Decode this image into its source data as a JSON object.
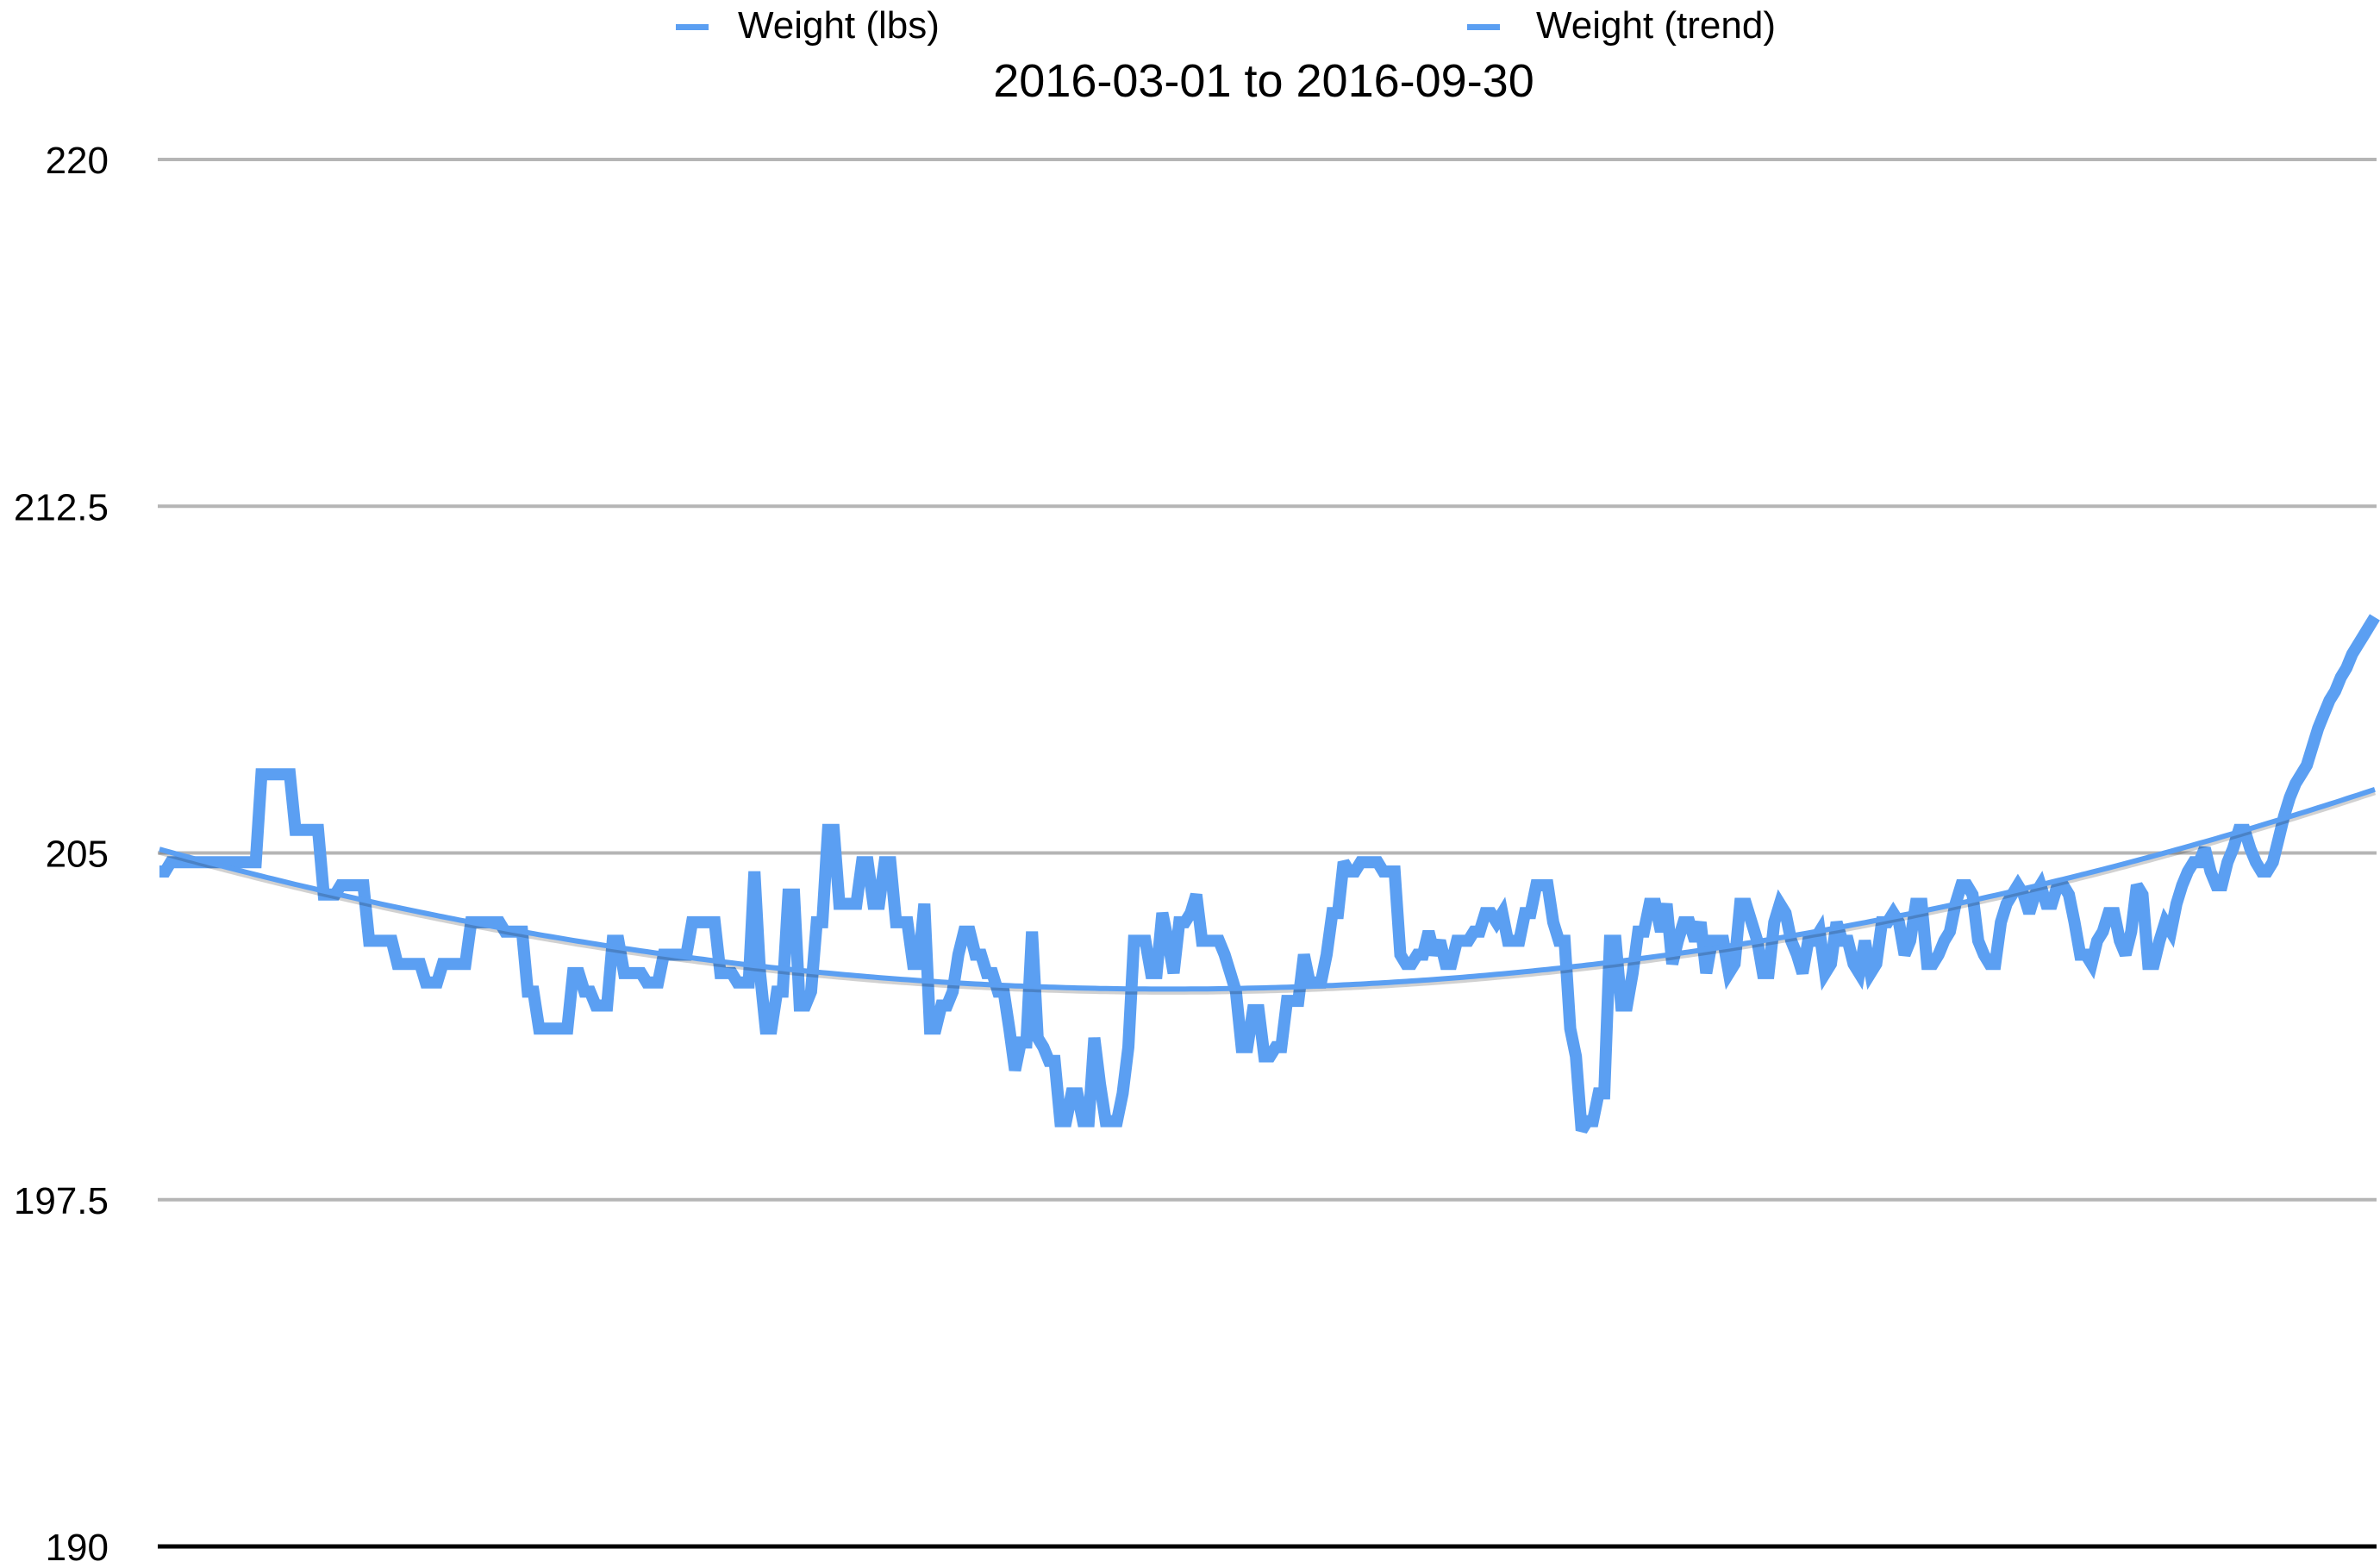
{
  "chart_data": {
    "type": "line",
    "title": "2016-03-01 to 2016-09-30",
    "xlabel": "",
    "ylabel": "",
    "ylim": [
      190,
      220
    ],
    "yticks": [
      {
        "value": 190,
        "label": "190"
      },
      {
        "value": 197.5,
        "label": "197.5"
      },
      {
        "value": 205,
        "label": "205"
      },
      {
        "value": 212.5,
        "label": "212.5"
      },
      {
        "value": 220,
        "label": "220"
      }
    ],
    "grid": true,
    "legend_position": "top",
    "series": [
      {
        "name": "Weight (lbs)",
        "color": "#5b9ff2",
        "x_start": "2016-03-01",
        "values": [
          204.6,
          204.6,
          204.8,
          204.8,
          204.8,
          204.8,
          204.8,
          204.8,
          204.8,
          204.8,
          204.8,
          204.8,
          204.8,
          204.8,
          204.8,
          204.8,
          204.8,
          204.8,
          206.7,
          206.7,
          206.7,
          206.7,
          206.7,
          206.7,
          205.5,
          205.5,
          205.5,
          205.5,
          205.5,
          204.1,
          204.1,
          204.1,
          204.3,
          204.3,
          204.3,
          204.3,
          204.3,
          203.1,
          203.1,
          203.1,
          203.1,
          203.1,
          202.6,
          202.6,
          202.6,
          202.6,
          202.6,
          202.2,
          202.2,
          202.2,
          202.6,
          202.6,
          202.6,
          202.6,
          202.6,
          203.5,
          203.5,
          203.5,
          203.5,
          203.5,
          203.5,
          203.3,
          203.3,
          203.3,
          203.3,
          202.0,
          202.0,
          201.2,
          201.2,
          201.2,
          201.2,
          201.2,
          201.2,
          202.4,
          202.4,
          202.0,
          202.0,
          201.7,
          201.7,
          201.7,
          203.1,
          203.1,
          202.4,
          202.4,
          202.4,
          202.4,
          202.2,
          202.2,
          202.2,
          202.8,
          202.8,
          202.8,
          202.8,
          202.8,
          203.5,
          203.5,
          203.5,
          203.5,
          203.5,
          202.4,
          202.4,
          202.4,
          202.2,
          202.2,
          202.2,
          204.6,
          202.4,
          201.2,
          201.2,
          202.0,
          202.0,
          204.1,
          204.1,
          201.7,
          201.7,
          202.0,
          203.5,
          203.5,
          205.5,
          205.5,
          203.9,
          203.9,
          203.9,
          203.9,
          204.8,
          204.8,
          203.9,
          203.9,
          204.8,
          204.8,
          203.5,
          203.5,
          203.5,
          202.6,
          202.6,
          203.9,
          201.2,
          201.2,
          201.7,
          201.7,
          202.0,
          202.8,
          203.3,
          203.3,
          202.8,
          202.8,
          202.4,
          202.4,
          202.0,
          202.0,
          201.2,
          200.3,
          200.9,
          200.9,
          203.3,
          201.0,
          200.8,
          200.5,
          200.5,
          199.2,
          199.2,
          199.8,
          199.8,
          199.2,
          199.2,
          201.0,
          200.0,
          199.2,
          199.2,
          199.2,
          199.8,
          200.8,
          203.1,
          203.1,
          203.1,
          202.4,
          202.4,
          203.7,
          203.1,
          202.4,
          203.5,
          203.5,
          203.7,
          204.1,
          203.1,
          203.1,
          203.1,
          203.1,
          202.8,
          202.4,
          202.0,
          200.8,
          200.8,
          201.6,
          201.6,
          200.6,
          200.6,
          200.8,
          200.8,
          201.8,
          201.8,
          201.8,
          202.8,
          202.2,
          202.2,
          202.2,
          202.8,
          203.7,
          203.7,
          204.8,
          204.6,
          204.6,
          204.8,
          204.8,
          204.8,
          204.8,
          204.6,
          204.6,
          204.6,
          202.8,
          202.6,
          202.6,
          202.8,
          202.8,
          203.3,
          202.8,
          203.1,
          202.6,
          202.6,
          203.1,
          203.1,
          203.1,
          203.3,
          203.3,
          203.7,
          203.7,
          203.5,
          203.7,
          203.1,
          203.1,
          203.1,
          203.7,
          203.7,
          204.3,
          204.3,
          204.3,
          203.5,
          203.1,
          203.1,
          201.2,
          200.6,
          199.0,
          199.2,
          199.2,
          199.8,
          199.8,
          203.1,
          203.1,
          201.7,
          201.7,
          202.4,
          203.3,
          203.3,
          203.9,
          203.9,
          203.3,
          203.9,
          202.6,
          203.1,
          203.5,
          203.5,
          203.1,
          203.5,
          202.4,
          203.1,
          203.1,
          203.1,
          202.4,
          202.6,
          203.9,
          203.9,
          203.5,
          203.1,
          202.4,
          202.4,
          203.5,
          203.9,
          203.7,
          203.1,
          202.8,
          202.4,
          203.1,
          203.1,
          203.3,
          202.4,
          202.6,
          203.5,
          203.1,
          203.1,
          202.6,
          202.4,
          203.1,
          202.4,
          202.6,
          203.5,
          203.5,
          203.7,
          203.5,
          202.8,
          203.1,
          203.9,
          203.9,
          202.6,
          202.6,
          202.8,
          203.1,
          203.3,
          203.9,
          204.3,
          204.3,
          204.1,
          203.1,
          202.8,
          202.6,
          202.6,
          203.5,
          203.9,
          204.1,
          204.3,
          204.1,
          203.7,
          204.1,
          204.3,
          203.9,
          203.9,
          204.3,
          204.3,
          204.1,
          203.5,
          202.8,
          202.8,
          202.6,
          203.1,
          203.3,
          203.7,
          203.7,
          203.1,
          202.8,
          203.3,
          204.3,
          204.1,
          202.6,
          202.6,
          203.1,
          203.5,
          203.3,
          203.9,
          204.3,
          204.6,
          204.8,
          204.8,
          205.1,
          204.6,
          204.3,
          204.3,
          204.8,
          205.1,
          205.5,
          205.5,
          205.1,
          204.8,
          204.6,
          204.6,
          204.8,
          205.3,
          205.8,
          206.2,
          206.5,
          206.7,
          206.9,
          207.3,
          207.7,
          208.0,
          208.3,
          208.5,
          208.8,
          209.0,
          209.3,
          209.5,
          209.7,
          209.9,
          210.1
        ]
      },
      {
        "name": "Weight (trend)",
        "color": "#5b9ff2"
      }
    ]
  },
  "legend": {
    "series_1_label": "Weight (lbs)",
    "series_2_label": "Weight (trend)"
  }
}
